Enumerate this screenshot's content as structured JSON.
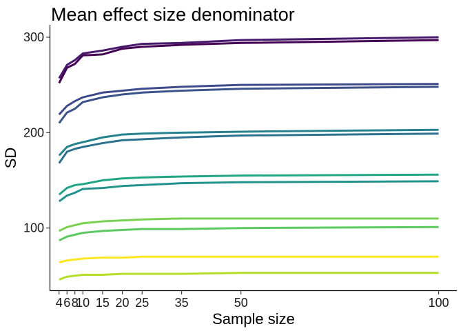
{
  "chart_data": {
    "type": "line",
    "title": "Mean effect size denominator",
    "xlabel": "Sample size",
    "ylabel": "SD",
    "x": [
      4,
      6,
      8,
      10,
      15,
      20,
      25,
      35,
      50,
      100
    ],
    "xticks": [
      4,
      6,
      8,
      10,
      15,
      20,
      25,
      35,
      50,
      100
    ],
    "xtick_labels": [
      "4",
      "6",
      "8",
      "10",
      "15",
      "20",
      "25",
      "35",
      "50",
      "100"
    ],
    "yticks": [
      100,
      200,
      300
    ],
    "ytick_labels": [
      "100",
      "200",
      "300"
    ],
    "xlim": [
      1.6,
      104.6
    ],
    "ylim": [
      34,
      313
    ],
    "grid": false,
    "legend": "none",
    "series": [
      {
        "color": "#440154",
        "values": [
          252,
          268,
          272,
          281,
          282,
          288,
          290,
          292,
          294,
          297
        ]
      },
      {
        "color": "#481a6c",
        "values": [
          257,
          271,
          276,
          283,
          286,
          290,
          293,
          294,
          297,
          300
        ]
      },
      {
        "color": "#3e4a89",
        "values": [
          219,
          228,
          233,
          237,
          242,
          244,
          246,
          248,
          250,
          251
        ]
      },
      {
        "color": "#3b528b",
        "values": [
          210,
          221,
          225,
          232,
          237,
          240,
          242,
          244,
          246,
          248
        ]
      },
      {
        "color": "#2c728e",
        "values": [
          168,
          180,
          183,
          185,
          189,
          192,
          193,
          195,
          197,
          199
        ]
      },
      {
        "color": "#26828e",
        "values": [
          176,
          185,
          188,
          190,
          195,
          198,
          199,
          200,
          201,
          203
        ]
      },
      {
        "color": "#21a585",
        "values": [
          135,
          142,
          145,
          146,
          150,
          152,
          153,
          154,
          155,
          156
        ]
      },
      {
        "color": "#22928c",
        "values": [
          128,
          134,
          137,
          141,
          142,
          144,
          145,
          147,
          148,
          149
        ]
      },
      {
        "color": "#7ad151",
        "values": [
          97,
          101,
          103,
          105,
          107,
          108,
          109,
          110,
          110,
          110
        ]
      },
      {
        "color": "#5ec962",
        "values": [
          87,
          91,
          93,
          95,
          97,
          98,
          99,
          99,
          100,
          101
        ]
      },
      {
        "color": "#fde725",
        "values": [
          64,
          66,
          67,
          68,
          69,
          69,
          70,
          70,
          70,
          70
        ]
      },
      {
        "color": "#b5de2b",
        "values": [
          46,
          49,
          50,
          51,
          51,
          52,
          52,
          52,
          53,
          53
        ]
      }
    ]
  }
}
